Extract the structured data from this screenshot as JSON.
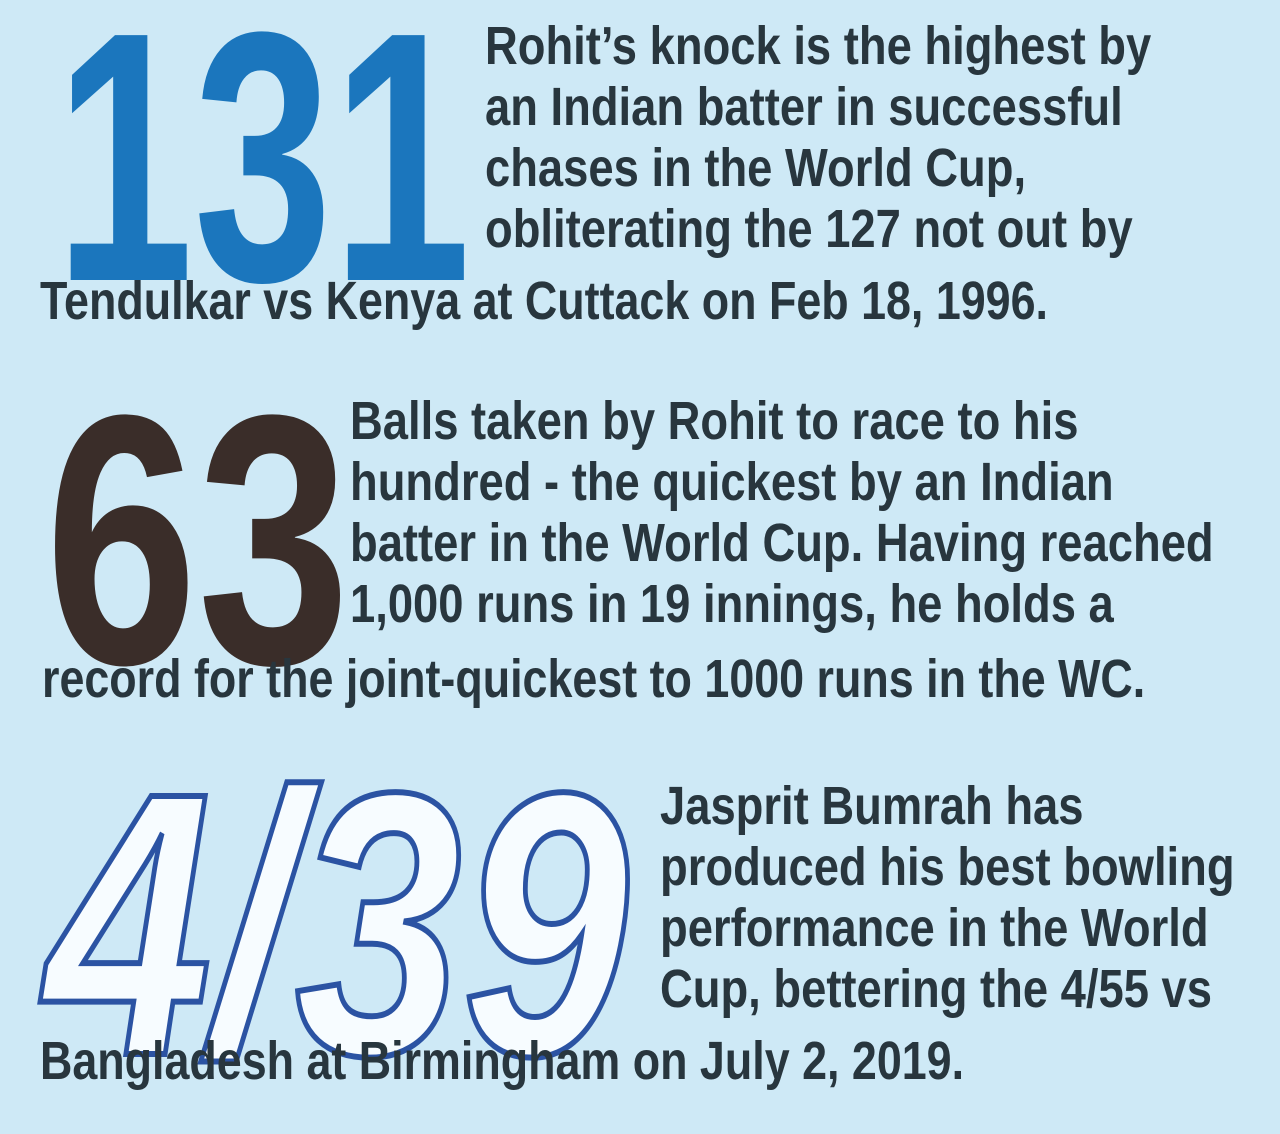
{
  "page": {
    "background_color": "#cee9f6",
    "text_color": "#28363e"
  },
  "stats": [
    {
      "number": "131",
      "number_color": "#1b76bd",
      "side_lines": [
        "Rohit’s knock is the highest by",
        "an Indian batter in successful",
        "chases in the World Cup,",
        "obliterating the 127 not out by"
      ],
      "full_line": "Tendulkar vs Kenya at Cuttack on Feb 18, 1996."
    },
    {
      "number": "63",
      "number_color": "#3a2d29",
      "side_lines": [
        "Balls taken by Rohit to race to his",
        "hundred - the quickest by an Indian",
        "batter in the World Cup. Having reached",
        "1,000 runs in 19 innings, he holds a"
      ],
      "full_line": "record for the joint-quickest to 1000 runs in the WC."
    },
    {
      "number": "4/39",
      "number_fill_color": "#f7fcff",
      "number_outline_color": "#2b53a3",
      "side_lines": [
        "Jasprit Bumrah has",
        "produced his best bowling",
        "performance in the World",
        "Cup, bettering the 4/55 vs"
      ],
      "full_line": "Bangladesh at Birmingham on July 2, 2019."
    }
  ]
}
